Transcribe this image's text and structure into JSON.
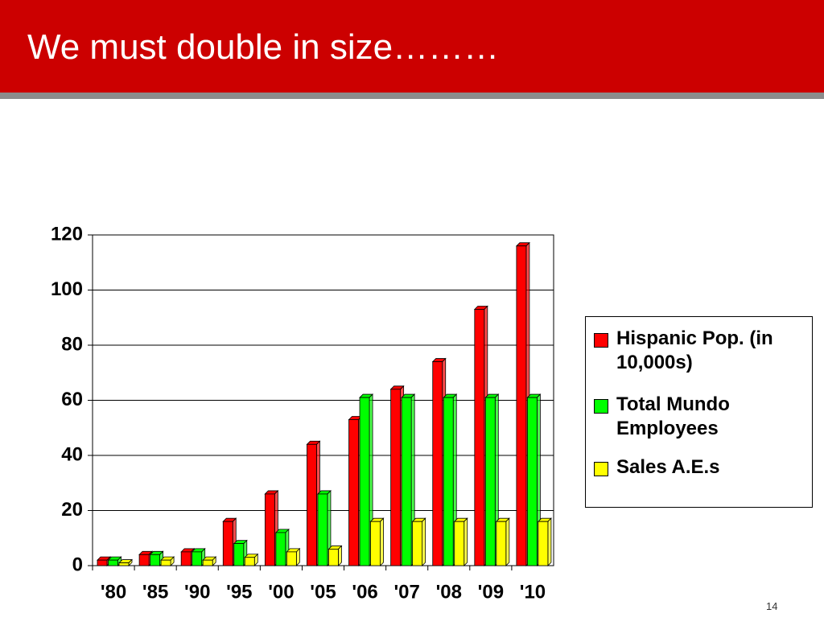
{
  "page_number": "14",
  "chart_data": {
    "type": "bar",
    "title": "We must double in size………",
    "categories": [
      "'80",
      "'85",
      "'90",
      "'95",
      "'00",
      "'05",
      "'06",
      "'07",
      "'08",
      "'09",
      "'10"
    ],
    "series": [
      {
        "name": "Hispanic Pop. (in 10,000s)",
        "color": "#ff0000",
        "values": [
          2,
          4,
          5,
          16,
          26,
          44,
          53,
          64,
          74,
          93,
          116
        ]
      },
      {
        "name": "Total Mundo Employees",
        "color": "#00ff00",
        "values": [
          2,
          4,
          5,
          8,
          12,
          26,
          61,
          61,
          61,
          61,
          61
        ]
      },
      {
        "name": "Sales A.E.s",
        "color": "#ffff00",
        "values": [
          1,
          2,
          2,
          3,
          5,
          6,
          16,
          16,
          16,
          16,
          16
        ]
      }
    ],
    "ylim": [
      0,
      120
    ],
    "yticks": [
      0,
      20,
      40,
      60,
      80,
      100,
      120
    ],
    "grid": true,
    "legend": "right"
  }
}
